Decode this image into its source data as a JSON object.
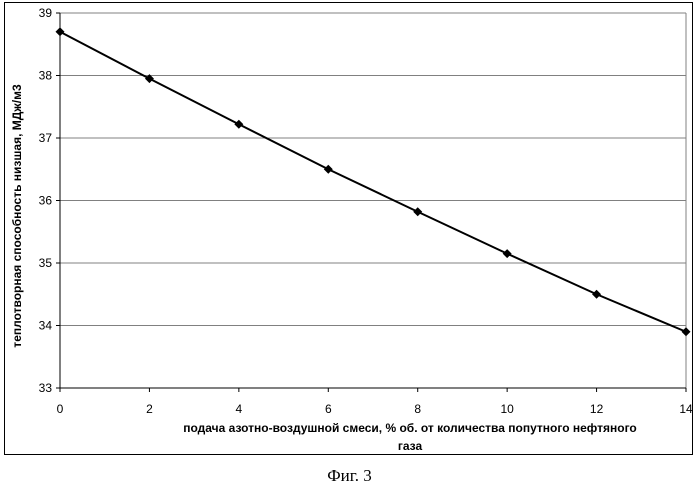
{
  "chart_data": {
    "type": "line",
    "x": [
      0,
      2,
      4,
      6,
      8,
      10,
      12,
      14
    ],
    "series": [
      {
        "values": [
          38.7,
          37.95,
          37.22,
          36.5,
          35.82,
          35.15,
          34.5,
          33.9
        ],
        "color": "#000000",
        "marker": "diamond"
      }
    ],
    "xlim": [
      0,
      14
    ],
    "ylim": [
      33,
      39
    ],
    "xticks": [
      "0",
      "2",
      "4",
      "6",
      "8",
      "10",
      "12",
      "14"
    ],
    "yticks": [
      "33",
      "34",
      "35",
      "36",
      "37",
      "38",
      "39"
    ],
    "xlabel_line1": "подача азотно-воздушной смеси, % об. от количества попутного нефтяного",
    "xlabel_line2": "газа",
    "ylabel": "теплотворная способность низшая, МДж/м3",
    "grid": "horizontal",
    "legend": "none"
  },
  "caption": "Фиг. 3"
}
